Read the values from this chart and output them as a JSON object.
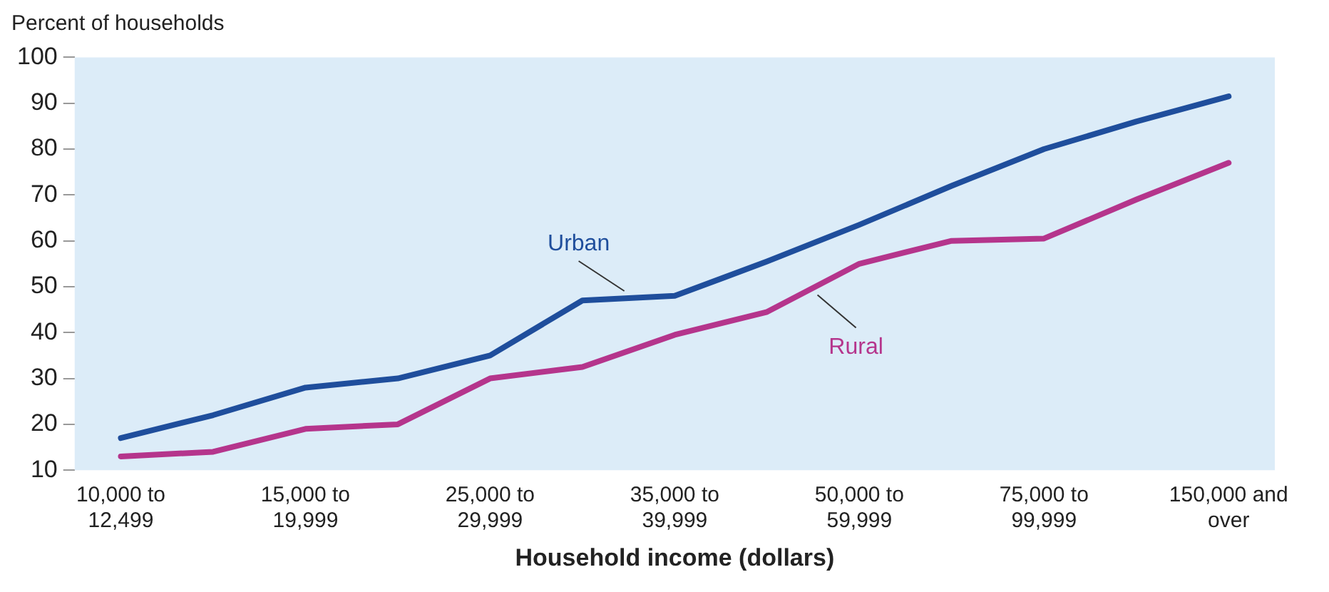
{
  "chart_data": {
    "type": "line",
    "ylabel": "Percent of households",
    "xlabel": "Household income (dollars)",
    "categories": [
      "10,000 to 12,499",
      null,
      "15,000 to 19,999",
      null,
      "25,000 to 29,999",
      null,
      "35,000 to 39,999",
      null,
      "50,000 to 59,999",
      null,
      "75,000 to 99,999",
      null,
      "150,000 and over"
    ],
    "series": [
      {
        "name": "Urban",
        "color": "#1f4e9c",
        "values": [
          17,
          22,
          28,
          30,
          35,
          47,
          48,
          55.5,
          63.5,
          72,
          80,
          86,
          91.5
        ]
      },
      {
        "name": "Rural",
        "color": "#b5358c",
        "values": [
          13,
          14,
          19,
          20,
          30,
          32.5,
          39.5,
          44.5,
          55,
          60,
          60.5,
          69,
          77
        ]
      }
    ],
    "ylim": [
      10,
      100
    ],
    "yticks": [
      10,
      20,
      30,
      40,
      50,
      60,
      70,
      80,
      90,
      100
    ],
    "grid": false,
    "legend": false,
    "marker": "none",
    "line_style": "solid"
  }
}
